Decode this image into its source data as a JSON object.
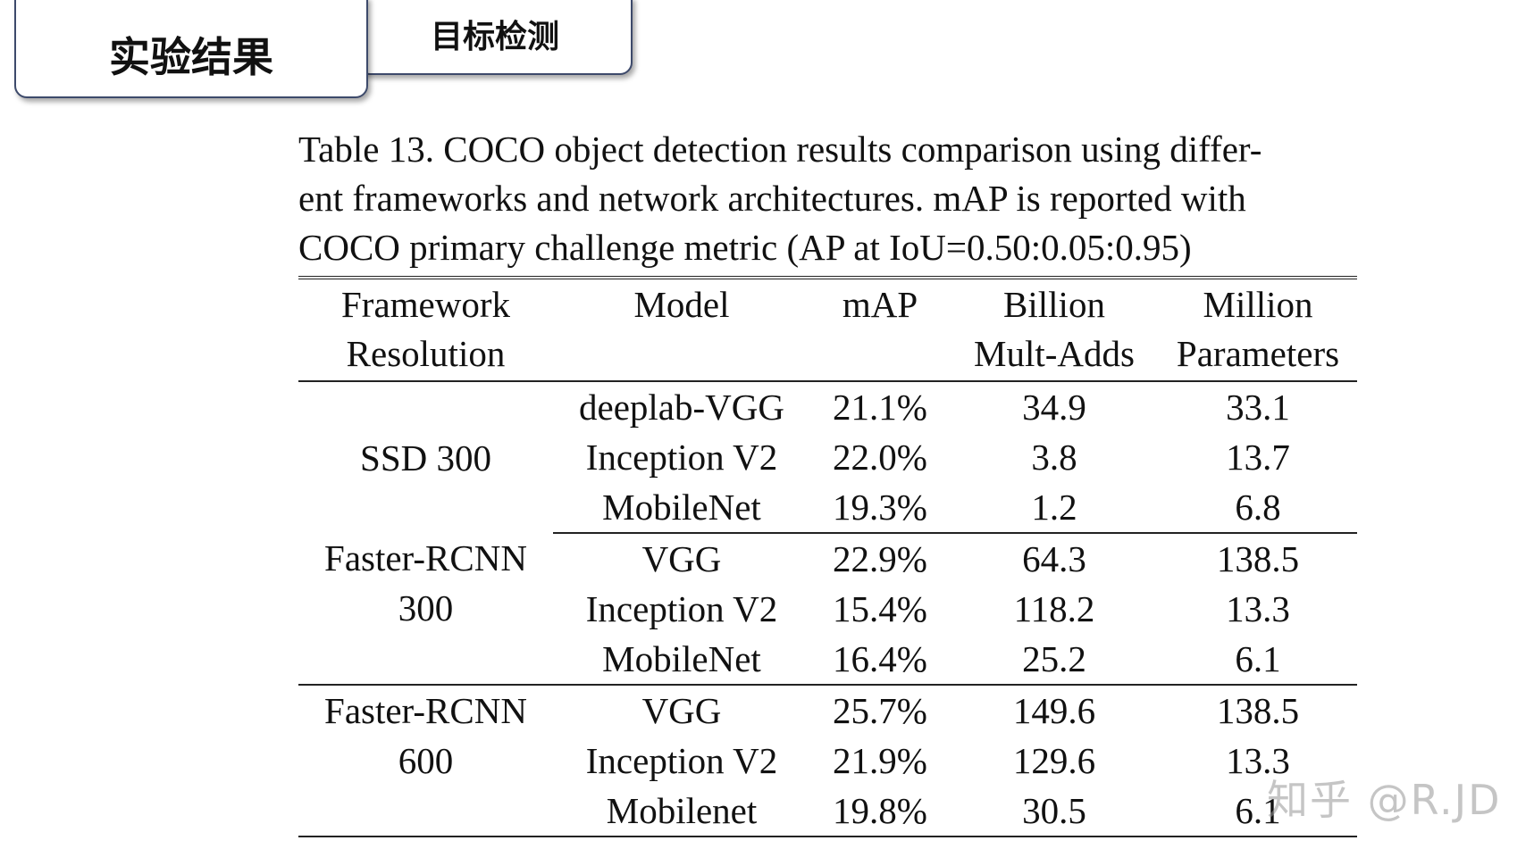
{
  "tabs": {
    "primary": "实验结果",
    "secondary": "目标检测"
  },
  "caption": {
    "lines": [
      "Table 13. COCO object detection results comparison using differ-",
      "ent frameworks and network architectures. mAP is reported with",
      "COCO primary challenge metric (AP at IoU=0.50:0.05:0.95)"
    ]
  },
  "table": {
    "headers": [
      [
        "Framework",
        "Resolution"
      ],
      [
        "Model",
        ""
      ],
      [
        "mAP",
        ""
      ],
      [
        "Billion",
        "Mult-Adds"
      ],
      [
        "Million",
        "Parameters"
      ]
    ],
    "groups": [
      {
        "framework": [
          "SSD 300"
        ],
        "rows": [
          [
            "deeplab-VGG",
            "21.1%",
            "34.9",
            "33.1"
          ],
          [
            "Inception V2",
            "22.0%",
            "3.8",
            "13.7"
          ],
          [
            "MobileNet",
            "19.3%",
            "1.2",
            "6.8"
          ]
        ]
      },
      {
        "framework": [
          "Faster-RCNN",
          "300"
        ],
        "rows": [
          [
            "VGG",
            "22.9%",
            "64.3",
            "138.5"
          ],
          [
            "Inception V2",
            "15.4%",
            "118.2",
            "13.3"
          ],
          [
            "MobileNet",
            "16.4%",
            "25.2",
            "6.1"
          ]
        ]
      },
      {
        "framework": [
          "Faster-RCNN",
          "600"
        ],
        "rows": [
          [
            "VGG",
            "25.7%",
            "149.6",
            "138.5"
          ],
          [
            "Inception V2",
            "21.9%",
            "129.6",
            "13.3"
          ],
          [
            "Mobilenet",
            "19.8%",
            "30.5",
            "6.1"
          ]
        ]
      }
    ]
  },
  "watermark": "知乎 @R.JD"
}
